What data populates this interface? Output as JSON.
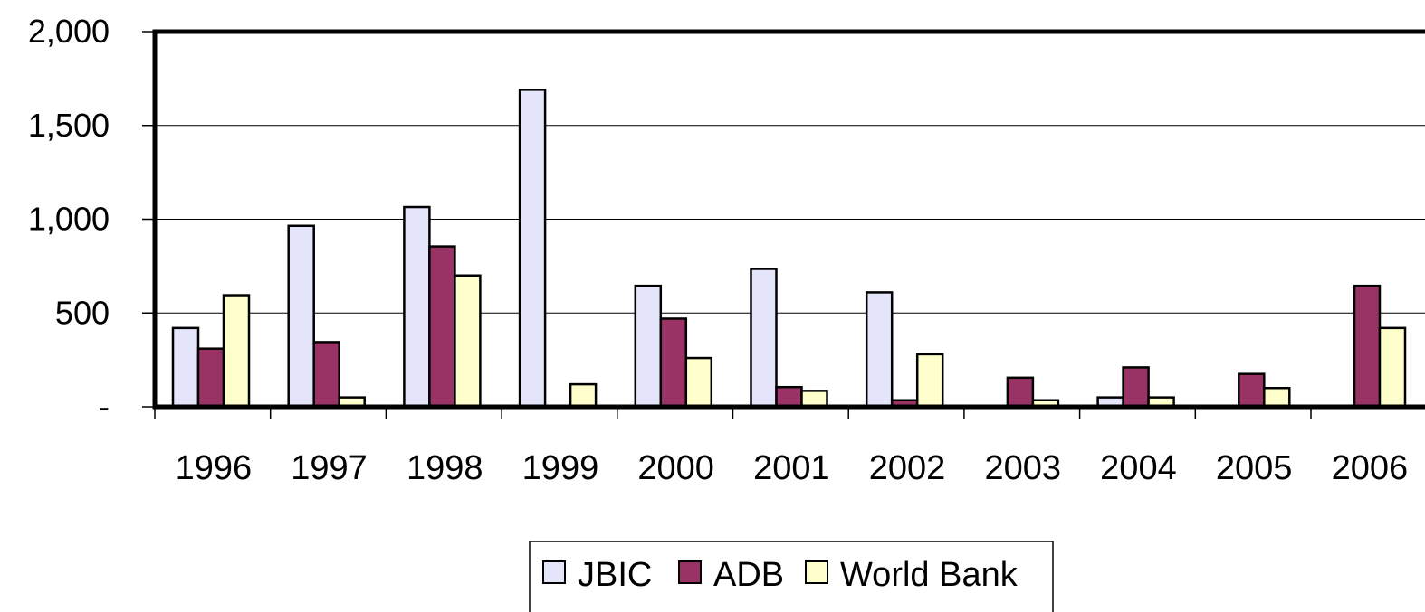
{
  "chart_data": {
    "type": "bar",
    "categories": [
      "1996",
      "1997",
      "1998",
      "1999",
      "2000",
      "2001",
      "2002",
      "2003",
      "2004",
      "2005",
      "2006"
    ],
    "series": [
      {
        "name": "JBIC",
        "color": "#e4e4fa",
        "values": [
          420,
          965,
          1065,
          1690,
          645,
          735,
          610,
          0,
          50,
          0,
          0
        ]
      },
      {
        "name": "ADB",
        "color": "#993366",
        "values": [
          310,
          345,
          855,
          0,
          470,
          105,
          35,
          155,
          210,
          175,
          645
        ]
      },
      {
        "name": "World Bank",
        "color": "#ffffcc",
        "values": [
          595,
          50,
          700,
          120,
          260,
          85,
          280,
          35,
          50,
          100,
          420
        ]
      }
    ],
    "ylim": [
      0,
      2000
    ],
    "yticks": [
      0,
      500,
      1000,
      1500,
      2000
    ],
    "ytick_labels": [
      "-",
      "500",
      "1,000",
      "1,500",
      "2,000"
    ],
    "grid": true,
    "legend_position": "bottom",
    "title": "",
    "xlabel": "",
    "ylabel": ""
  }
}
